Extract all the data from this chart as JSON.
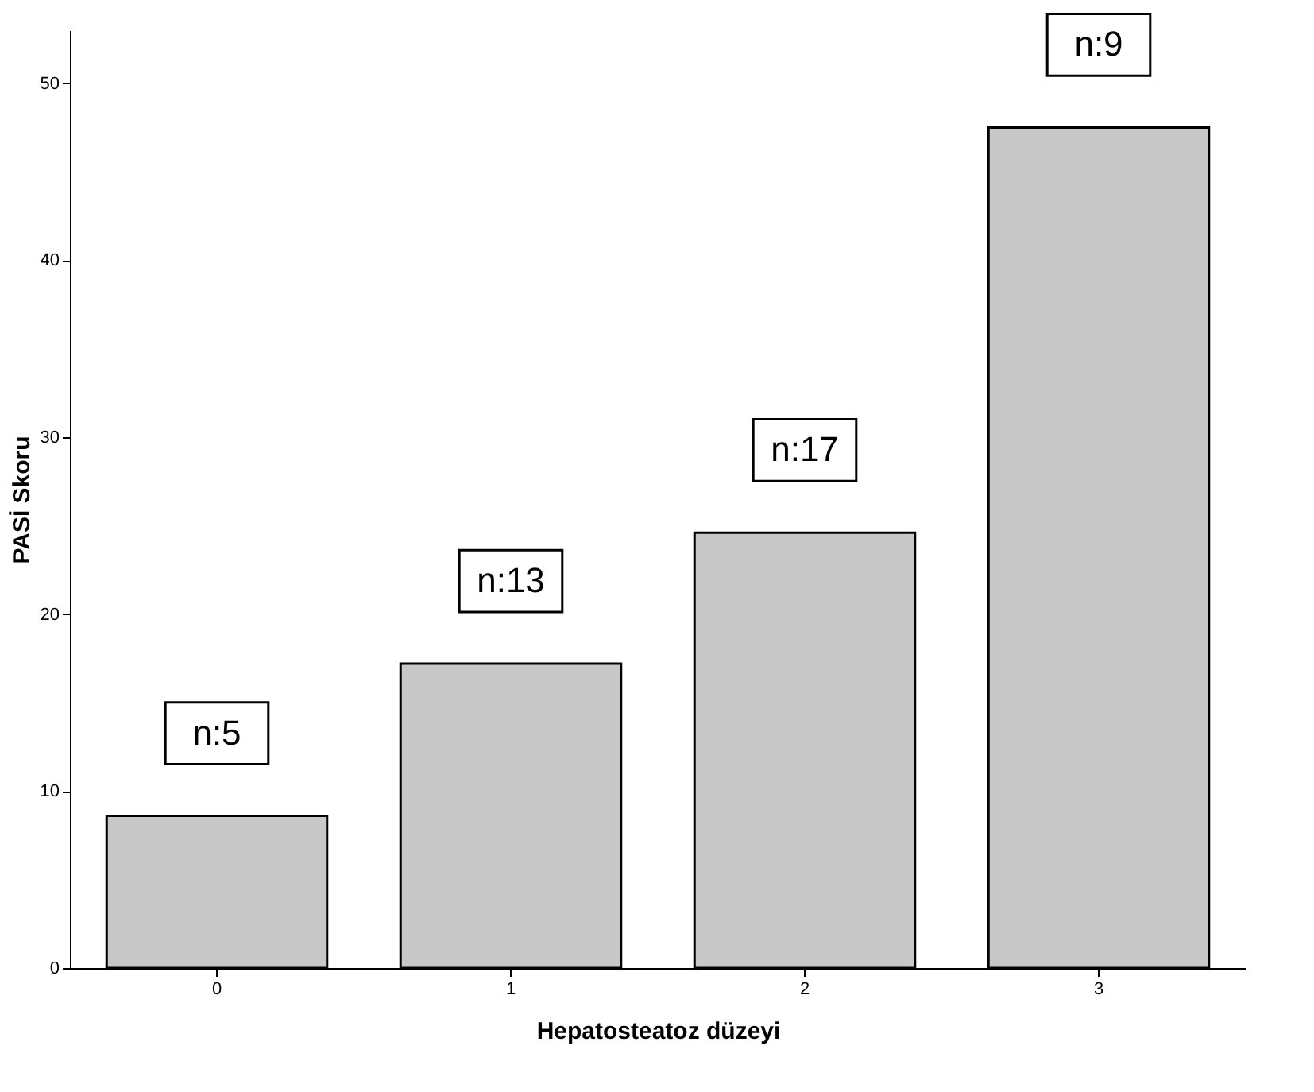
{
  "chart_data": {
    "type": "bar",
    "xlabel": "Hepatosteatoz düzeyi",
    "ylabel": "PASİ Skoru",
    "categories": [
      "0",
      "1",
      "2",
      "3"
    ],
    "values": [
      8.6,
      17.2,
      24.6,
      47.5
    ],
    "color": "#c8c8c8",
    "ylim": [
      0,
      53
    ],
    "yticks": [
      0,
      10,
      20,
      30,
      40,
      50
    ],
    "grid": false,
    "annotations": [
      "n:5",
      "n:13",
      "n:17",
      "n:9"
    ]
  }
}
